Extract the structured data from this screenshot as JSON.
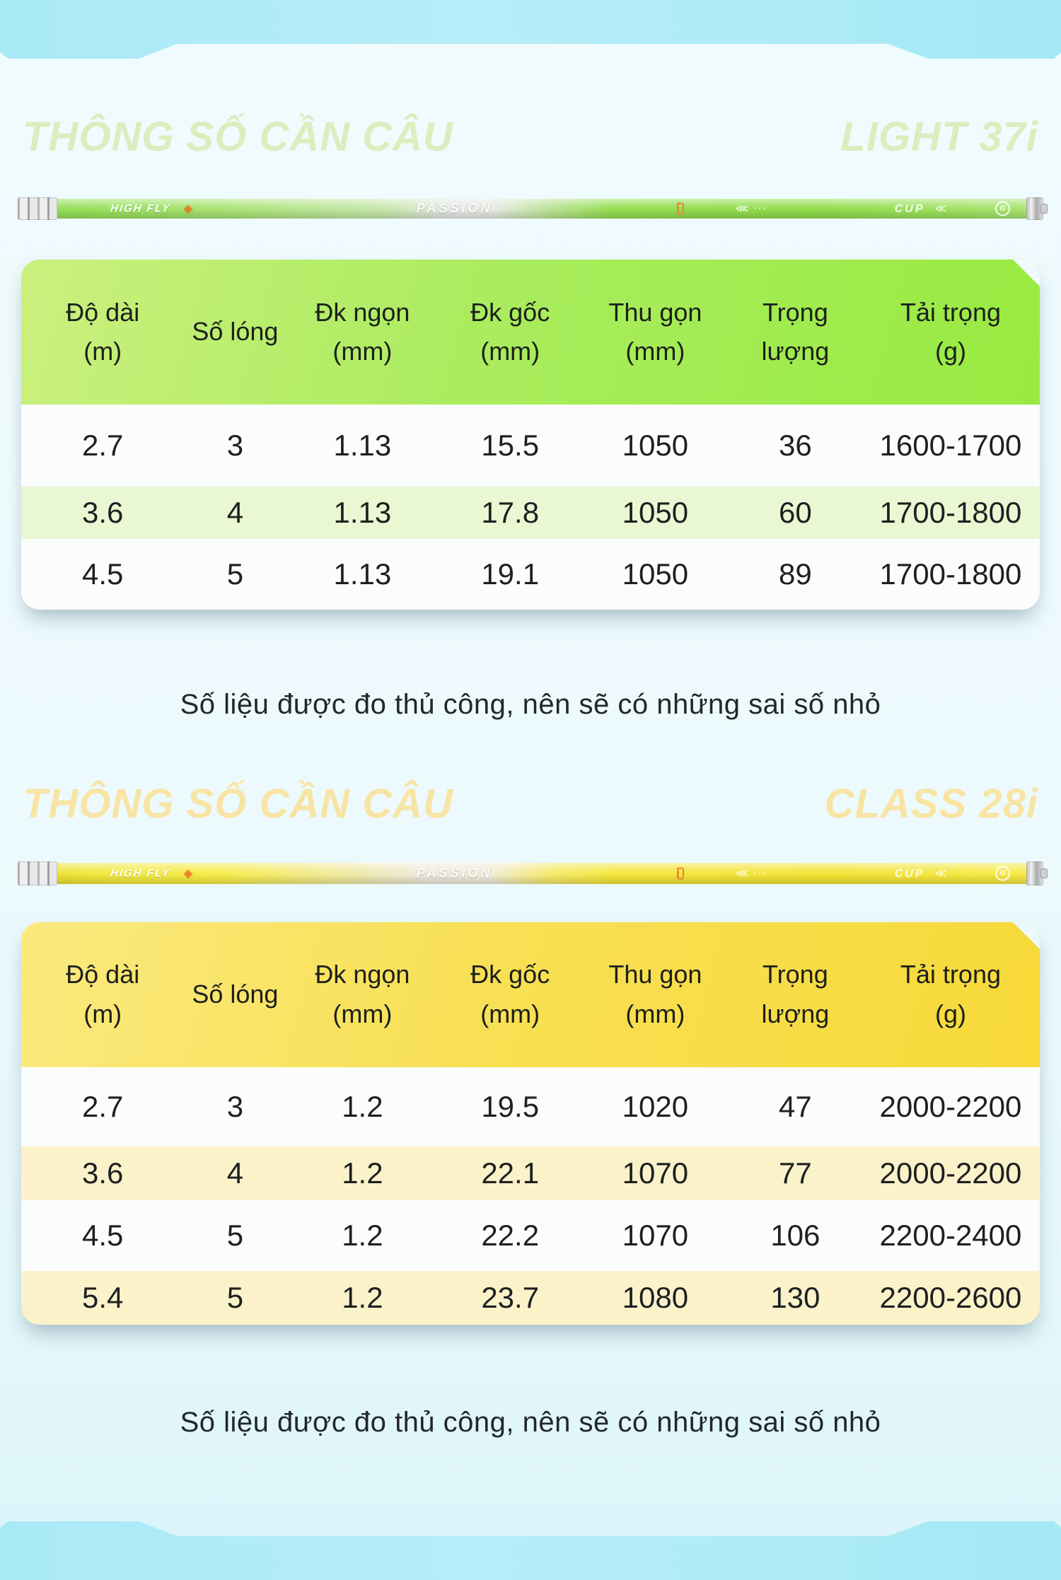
{
  "colors": {
    "band_cyan": "#a7e8f6",
    "page_background": "#eefafd",
    "light37i": {
      "title_text": "#dcedbe",
      "header_gradient": [
        "#cbf07e",
        "#98ea41"
      ],
      "alt_row": "#e9f7d3",
      "rod_body": "#94dd50"
    },
    "class28i": {
      "title_text": "#f8e4a4",
      "header_gradient": [
        "#fbe97e",
        "#f7d938"
      ],
      "alt_row": "#fcf2ca",
      "rod_body": "#f2e53a"
    }
  },
  "sections": [
    {
      "heading": "THÔNG SỐ CẦN CÂU",
      "model": "LIGHT 37i",
      "rod": {
        "brand": "HIGH FLY",
        "series": "PASSION",
        "cup": "CUP",
        "logo": "G"
      },
      "table": {
        "columns": [
          {
            "line1": "Độ dài",
            "line2": "(m)"
          },
          {
            "line1": "Số lóng",
            "line2": ""
          },
          {
            "line1": "Đk ngọn",
            "line2": "(mm)"
          },
          {
            "line1": "Đk gốc",
            "line2": "(mm)"
          },
          {
            "line1": "Thu gọn",
            "line2": "(mm)"
          },
          {
            "line1": "Trọng",
            "line2": "lượng"
          },
          {
            "line1": "Tải trọng",
            "line2": "(g)"
          }
        ],
        "rows": [
          [
            "2.7",
            "3",
            "1.13",
            "15.5",
            "1050",
            "36",
            "1600-1700"
          ],
          [
            "3.6",
            "4",
            "1.13",
            "17.8",
            "1050",
            "60",
            "1700-1800"
          ],
          [
            "4.5",
            "5",
            "1.13",
            "19.1",
            "1050",
            "89",
            "1700-1800"
          ]
        ]
      },
      "note": "Số liệu được đo thủ công, nên sẽ có những sai số nhỏ"
    },
    {
      "heading": "THÔNG SỐ CẦN CÂU",
      "model": "CLASS 28i",
      "rod": {
        "brand": "HIGH FLY",
        "series": "PASSION",
        "cup": "CUP",
        "logo": "G"
      },
      "table": {
        "columns": [
          {
            "line1": "Độ dài",
            "line2": "(m)"
          },
          {
            "line1": "Số lóng",
            "line2": ""
          },
          {
            "line1": "Đk ngọn",
            "line2": "(mm)"
          },
          {
            "line1": "Đk gốc",
            "line2": "(mm)"
          },
          {
            "line1": "Thu gọn",
            "line2": "(mm)"
          },
          {
            "line1": "Trọng",
            "line2": "lượng"
          },
          {
            "line1": "Tải trọng",
            "line2": "(g)"
          }
        ],
        "rows": [
          [
            "2.7",
            "3",
            "1.2",
            "19.5",
            "1020",
            "47",
            "2000-2200"
          ],
          [
            "3.6",
            "4",
            "1.2",
            "22.1",
            "1070",
            "77",
            "2000-2200"
          ],
          [
            "4.5",
            "5",
            "1.2",
            "22.2",
            "1070",
            "106",
            "2200-2400"
          ],
          [
            "5.4",
            "5",
            "1.2",
            "23.7",
            "1080",
            "130",
            "2200-2600"
          ]
        ]
      },
      "note": "Số liệu được đo thủ công, nên sẽ có những sai số nhỏ"
    }
  ]
}
